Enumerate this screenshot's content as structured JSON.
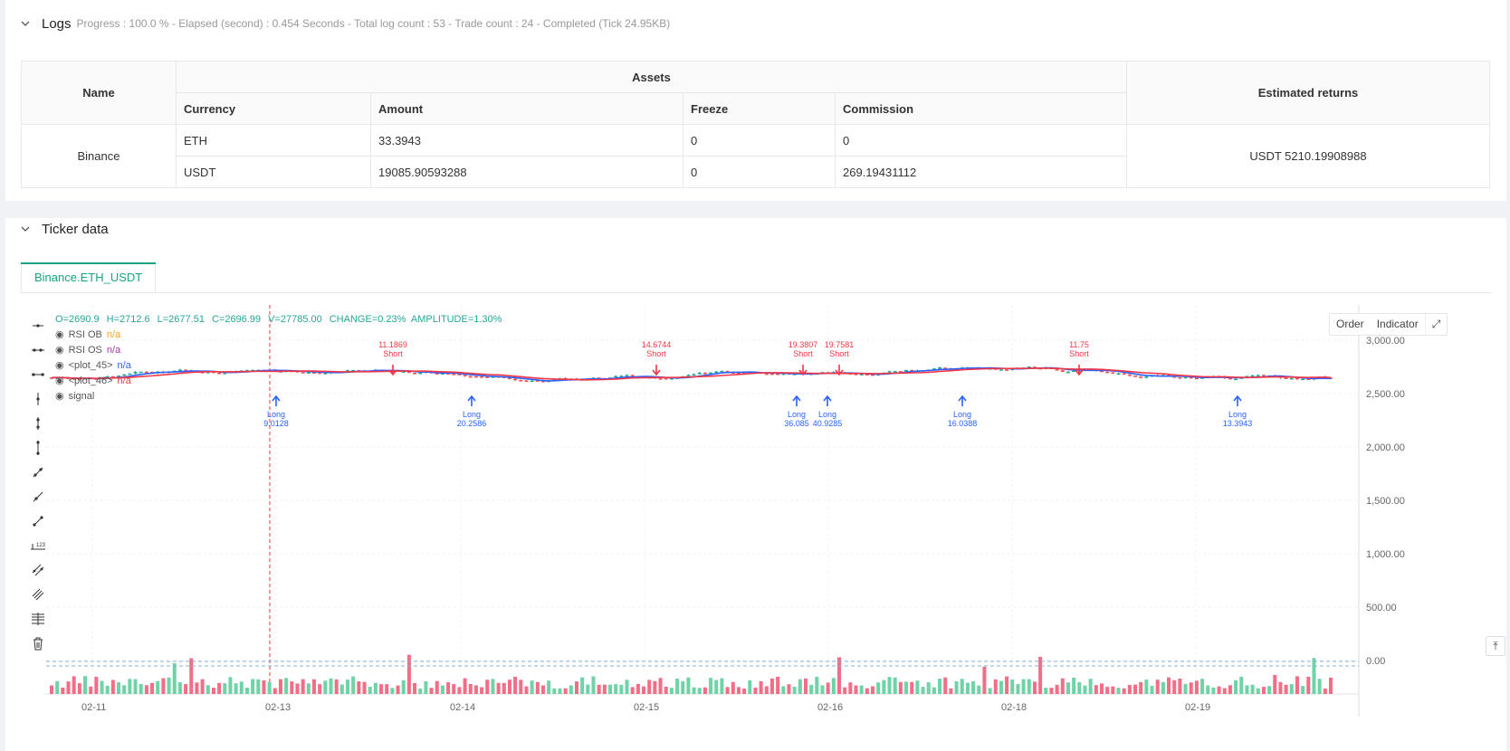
{
  "logs": {
    "title": "Logs",
    "meta": "Progress : 100.0 % - Elapsed (second) : 0.454  Seconds - Total log count : 53 - Trade count : 24 - Completed (Tick 24.95KB)",
    "table": {
      "h_name": "Name",
      "h_assets": "Assets",
      "h_returns": "Estimated returns",
      "h_currency": "Currency",
      "h_amount": "Amount",
      "h_freeze": "Freeze",
      "h_commission": "Commission",
      "exchange": "Binance",
      "returns": "USDT 5210.19908988",
      "rows": [
        {
          "currency": "ETH",
          "amount": "33.3943",
          "freeze": "0",
          "commission": "0"
        },
        {
          "currency": "USDT",
          "amount": "19085.90593288",
          "freeze": "0",
          "commission": "269.19431112"
        }
      ]
    }
  },
  "ticker": {
    "title": "Ticker data",
    "tab": "Binance.ETH_USDT",
    "buttons": {
      "order": "Order",
      "indicator": "Indicator"
    },
    "ohlc": {
      "o": "O=2690.9",
      "h": "H=2712.6",
      "l": "L=2677.51",
      "c": "C=2696.99",
      "v": "V=27785.00",
      "change": "CHANGE=0.23%",
      "amplitude": "AMPLITUDE=1.30%"
    },
    "legend": [
      {
        "label": "RSI OB",
        "value": "n/a",
        "color": "#f5a623"
      },
      {
        "label": "RSI OS",
        "value": "n/a",
        "color": "#a23aa3"
      },
      {
        "label": "<plot_45>",
        "value": "n/a",
        "color": "#2962ff"
      },
      {
        "label": "<plot_46>",
        "value": "n/a",
        "color": "#f23645"
      },
      {
        "label": "signal",
        "value": "",
        "color": "#555"
      }
    ]
  },
  "colors": {
    "up": "#26a69a",
    "down": "#ef5350",
    "accent": "#16a37f",
    "long": "#2962ff",
    "short": "#f23645"
  },
  "chart_data": {
    "type": "candlestick",
    "y_ticks": [
      "3,000.00",
      "2,500.00",
      "2,000.00",
      "1,500.00",
      "1,000.00",
      "500.00",
      "0.00"
    ],
    "x_ticks": [
      "02-11",
      "02-13",
      "02-14",
      "02-15",
      "02-16",
      "02-18",
      "02-19"
    ],
    "price_range": [
      2600,
      2760
    ],
    "signals": [
      {
        "type": "Long",
        "qty": "9.0128",
        "x": "02-13"
      },
      {
        "type": "Short",
        "qty": "11.1869",
        "x": "02-13"
      },
      {
        "type": "Long",
        "qty": "20.2586",
        "x": "02-14"
      },
      {
        "type": "Short",
        "qty": "14.6744",
        "x": "02-15"
      },
      {
        "type": "Short",
        "qty": "19.3807",
        "x": "02-15"
      },
      {
        "type": "Long",
        "qty": "36.085",
        "x": "02-15"
      },
      {
        "type": "Short",
        "qty": "19.7581",
        "x": "02-16"
      },
      {
        "type": "Long",
        "qty": "40.9285",
        "x": "02-16"
      },
      {
        "type": "Long",
        "qty": "16.0388",
        "x": "02-17"
      },
      {
        "type": "Short",
        "qty": "11.75",
        "x": "02-18"
      },
      {
        "type": "Long",
        "qty": "13.3943",
        "x": "02-19"
      }
    ]
  }
}
